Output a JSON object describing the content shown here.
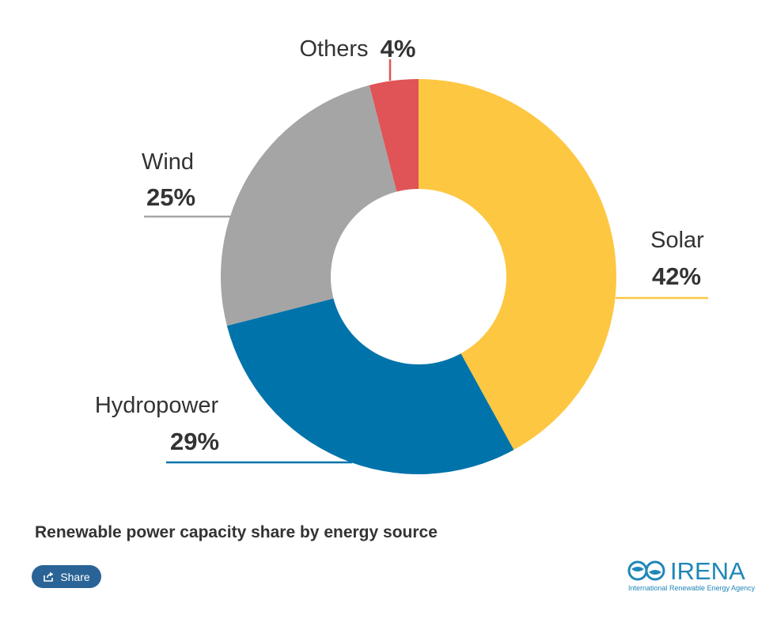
{
  "chart_data": {
    "type": "pie",
    "donut": true,
    "title": "Renewable power capacity share by energy source",
    "slices": [
      {
        "name": "Solar",
        "value": 42,
        "label": "42%",
        "color": "#fdc742"
      },
      {
        "name": "Hydropower",
        "value": 29,
        "label": "29%",
        "color": "#0073aa"
      },
      {
        "name": "Wind",
        "value": 25,
        "label": "25%",
        "color": "#a5a5a5"
      },
      {
        "name": "Others",
        "value": 4,
        "label": "4%",
        "color": "#e05356"
      }
    ],
    "start_angle_deg": 0,
    "legend": "none"
  },
  "share": {
    "label": "Share",
    "icon": "share-icon"
  },
  "logo": {
    "name": "IRENA",
    "tagline": "International Renewable Energy Agency",
    "color": "#1f87b8"
  },
  "colors": {
    "text": "#333333",
    "button": "#2a6496"
  }
}
